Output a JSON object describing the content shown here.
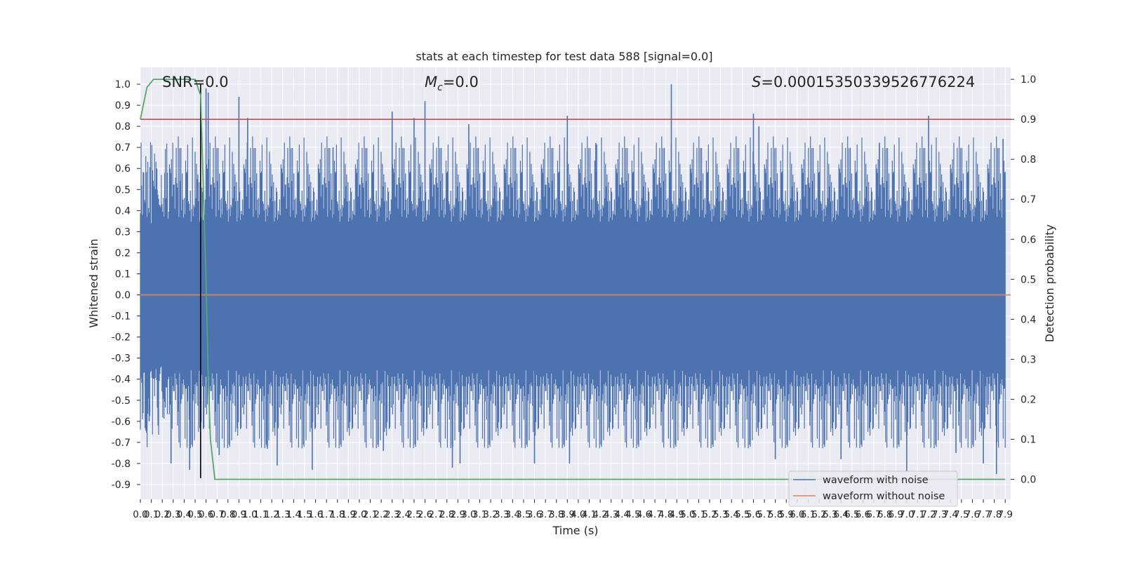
{
  "chart_data": {
    "type": "line",
    "title": "stats at each timestep for test data 588 [signal=0.0]",
    "xlabel": "Time (s)",
    "ylabel": "Whitened strain",
    "y2label": "Detection probability",
    "xlim": [
      0.0,
      7.95
    ],
    "ylim": [
      -0.97,
      1.08
    ],
    "y2lim": [
      -0.05,
      1.03
    ],
    "grid": true,
    "legend_position": "lower right",
    "annotations": {
      "snr": "SNR=0.0",
      "mc_symbol": "M",
      "mc_sub": "c",
      "mc_value": "=0.0",
      "s_symbol": "S",
      "s_value": "=0.00015350339526776224"
    },
    "xticks": [
      "0.0",
      "0.1",
      "0.2",
      "0.3",
      "0.4",
      "0.5",
      "0.6",
      "0.7",
      "0.8",
      "0.9",
      "1.0",
      "1.1",
      "1.2",
      "1.3",
      "1.4",
      "1.5",
      "1.6",
      "1.7",
      "1.8",
      "1.9",
      "2.0",
      "2.1",
      "2.2",
      "2.3",
      "2.4",
      "2.5",
      "2.6",
      "2.7",
      "2.8",
      "2.9",
      "3.0",
      "3.1",
      "3.2",
      "3.3",
      "3.4",
      "3.5",
      "3.6",
      "3.7",
      "3.8",
      "3.9",
      "4.0",
      "4.1",
      "4.2",
      "4.3",
      "4.4",
      "4.5",
      "4.6",
      "4.7",
      "4.8",
      "4.9",
      "5.0",
      "5.1",
      "5.2",
      "5.3",
      "5.4",
      "5.5",
      "5.6",
      "5.7",
      "5.8",
      "5.9",
      "6.0",
      "6.1",
      "6.2",
      "6.3",
      "6.4",
      "6.5",
      "6.6",
      "6.7",
      "6.8",
      "6.9",
      "7.0",
      "7.1",
      "7.2",
      "7.3",
      "7.4",
      "7.5",
      "7.6",
      "7.7",
      "7.8",
      "7.9"
    ],
    "yticks": [
      "1.0",
      "0.9",
      "0.8",
      "0.7",
      "0.6",
      "0.5",
      "0.4",
      "0.3",
      "0.2",
      "0.1",
      "0.0",
      "-0.1",
      "-0.2",
      "-0.3",
      "-0.4",
      "-0.5",
      "-0.6",
      "-0.7",
      "-0.8",
      "-0.9"
    ],
    "y2ticks": [
      "1.0",
      "0.9",
      "0.8",
      "0.7",
      "0.6",
      "0.5",
      "0.4",
      "0.3",
      "0.2",
      "0.1",
      "0.0"
    ],
    "threshold": {
      "y2": 0.9,
      "color": "#c44e52"
    },
    "vline": {
      "x": 0.55,
      "y_from": -0.87,
      "y_to": 1.0,
      "color": "#000000"
    },
    "noise_envelope": {
      "seed": 588,
      "samples": 1280,
      "base_upper": 0.33,
      "base_lower": -0.33
    },
    "series": [
      {
        "name": "waveform with noise",
        "color": "#4c72b0"
      },
      {
        "name": "waveform without noise",
        "color": "#dd8452",
        "y": 0.0
      },
      {
        "name": "",
        "color": "#55a868",
        "axis": "right",
        "x": [
          0.0,
          0.06,
          0.12,
          0.5,
          0.55,
          0.6,
          0.62,
          0.64,
          0.68,
          7.9
        ],
        "y": [
          0.9,
          0.98,
          1.0,
          1.0,
          0.96,
          0.5,
          0.25,
          0.1,
          0.0,
          0.0
        ]
      }
    ],
    "spikes": [
      {
        "x": 0.03,
        "y": 0.58
      },
      {
        "x": 0.08,
        "y": -0.6
      },
      {
        "x": 0.15,
        "y": 0.6
      },
      {
        "x": 0.28,
        "y": -0.8
      },
      {
        "x": 0.45,
        "y": -0.83
      },
      {
        "x": 0.52,
        "y": 0.55
      },
      {
        "x": 0.6,
        "y": 0.98
      },
      {
        "x": 0.62,
        "y": 0.96
      },
      {
        "x": 0.72,
        "y": -0.76
      },
      {
        "x": 0.9,
        "y": 0.94
      },
      {
        "x": 0.98,
        "y": 0.84
      },
      {
        "x": 1.16,
        "y": -0.73
      },
      {
        "x": 1.25,
        "y": -0.81
      },
      {
        "x": 1.57,
        "y": -0.83
      },
      {
        "x": 1.76,
        "y": 0.7
      },
      {
        "x": 2.22,
        "y": -0.74
      },
      {
        "x": 2.3,
        "y": 0.87
      },
      {
        "x": 2.5,
        "y": 0.84
      },
      {
        "x": 2.6,
        "y": 0.92
      },
      {
        "x": 2.85,
        "y": -0.82
      },
      {
        "x": 2.92,
        "y": -0.8
      },
      {
        "x": 3.0,
        "y": 0.81
      },
      {
        "x": 3.6,
        "y": -0.8
      },
      {
        "x": 3.9,
        "y": 0.85
      },
      {
        "x": 3.92,
        "y": -0.8
      },
      {
        "x": 4.16,
        "y": 0.72
      },
      {
        "x": 4.85,
        "y": 1.0
      },
      {
        "x": 5.6,
        "y": 0.86
      },
      {
        "x": 5.65,
        "y": 0.8
      },
      {
        "x": 5.8,
        "y": -0.78
      },
      {
        "x": 6.4,
        "y": -0.78
      },
      {
        "x": 6.75,
        "y": 0.72
      },
      {
        "x": 7.0,
        "y": -0.84
      },
      {
        "x": 7.2,
        "y": 0.85
      },
      {
        "x": 7.45,
        "y": -0.75
      },
      {
        "x": 7.7,
        "y": -0.8
      },
      {
        "x": 7.82,
        "y": -0.85
      },
      {
        "x": 7.88,
        "y": 0.74
      }
    ]
  }
}
